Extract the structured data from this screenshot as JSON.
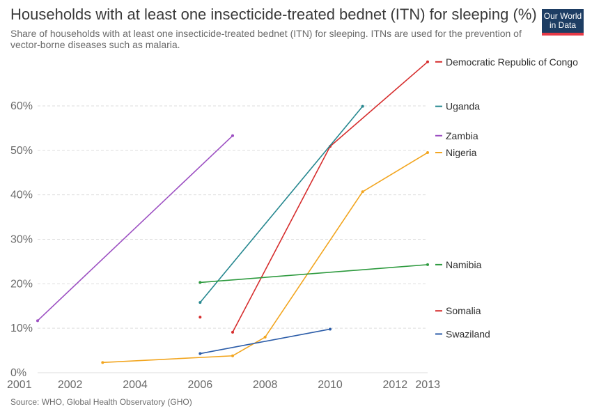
{
  "header": {
    "title": "Households with at least one insecticide-treated bednet (ITN) for sleeping (%)",
    "subtitle": "Share of households with at least one insecticide-treated bednet (ITN) for sleeping. ITNs are used for the prevention of vector-borne diseases such as malaria.",
    "logo_line1": "Our World",
    "logo_line2": "in Data"
  },
  "footer": {
    "source": "Source: WHO, Global Health Observatory (GHO)"
  },
  "chart_data": {
    "type": "line",
    "title": "Households with at least one insecticide-treated bednet (ITN) for sleeping (%)",
    "xlabel": "",
    "ylabel": "",
    "xlim": [
      2001,
      2013
    ],
    "ylim": [
      0,
      60
    ],
    "grid": "horizontal dashed",
    "legend_position": "right end labels",
    "x_ticks": [
      2001,
      2002,
      2004,
      2006,
      2008,
      2010,
      2012,
      2013
    ],
    "y_ticks": [
      {
        "value": 0,
        "label": "0%"
      },
      {
        "value": 10,
        "label": "10%"
      },
      {
        "value": 20,
        "label": "20%"
      },
      {
        "value": 30,
        "label": "30%"
      },
      {
        "value": 40,
        "label": "40%"
      },
      {
        "value": 50,
        "label": "50%"
      },
      {
        "value": 60,
        "label": "60%"
      }
    ],
    "series": [
      {
        "name": "Democratic Republic of Congo",
        "color": "#d62d2d",
        "x": [
          2007,
          2010,
          2013
        ],
        "y": [
          9.1,
          50.9,
          69.9
        ],
        "label_value": 69.9
      },
      {
        "name": "Uganda",
        "color": "#25878f",
        "x": [
          2006,
          2011
        ],
        "y": [
          15.8,
          59.9
        ],
        "label_value": 59.9
      },
      {
        "name": "Zambia",
        "color": "#9c4fc2",
        "x": [
          2001,
          2007
        ],
        "y": [
          11.7,
          53.3
        ],
        "label_value": 53.3
      },
      {
        "name": "Nigeria",
        "color": "#f2a51e",
        "x": [
          2003,
          2007,
          2008,
          2011,
          2013
        ],
        "y": [
          2.3,
          3.8,
          8.0,
          40.7,
          49.5
        ],
        "label_value": 49.5
      },
      {
        "name": "Namibia",
        "color": "#2d9a3e",
        "x": [
          2006,
          2013
        ],
        "y": [
          20.3,
          24.3
        ],
        "label_value": 24.3
      },
      {
        "name": "Somalia",
        "color": "#d62d2d",
        "x": [
          2006
        ],
        "y": [
          12.5
        ],
        "label_value": 12.5
      },
      {
        "name": "Swaziland",
        "color": "#2b5ca8",
        "x": [
          2006,
          2010
        ],
        "y": [
          4.3,
          9.8
        ],
        "label_value": 9.8
      }
    ]
  }
}
